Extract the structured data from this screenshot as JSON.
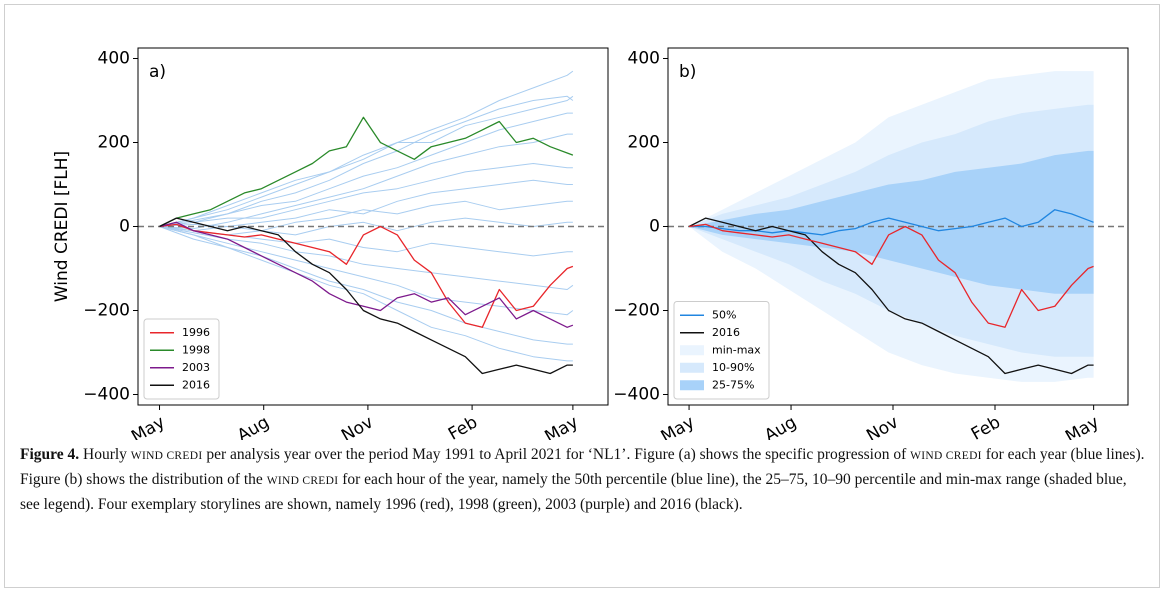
{
  "chart_data": [
    {
      "type": "line",
      "panel_label": "a)",
      "ylabel": "Wind CREDI [FLH]",
      "xlim": [
        -19,
        396
      ],
      "ylim": [
        -425,
        425
      ],
      "xticks": [
        {
          "value": 0,
          "label": "May"
        },
        {
          "value": 92,
          "label": "Aug"
        },
        {
          "value": 184,
          "label": "Nov"
        },
        {
          "value": 276,
          "label": "Feb"
        },
        {
          "value": 365,
          "label": "May"
        }
      ],
      "yticks": [
        {
          "value": -400,
          "label": "−400"
        },
        {
          "value": -200,
          "label": "−200"
        },
        0,
        200,
        400
      ],
      "zero_line": true,
      "legend_loc": "lower left",
      "background_lines": {
        "color": "#a9cdf0",
        "x": [
          0,
          30,
          60,
          90,
          120,
          150,
          180,
          210,
          240,
          270,
          300,
          330,
          360,
          365
        ],
        "values": [
          [
            0,
            20,
            40,
            70,
            100,
            130,
            170,
            200,
            230,
            260,
            300,
            330,
            360,
            370
          ],
          [
            0,
            15,
            30,
            60,
            80,
            110,
            150,
            180,
            220,
            250,
            280,
            300,
            310,
            300
          ],
          [
            0,
            10,
            30,
            50,
            60,
            90,
            120,
            140,
            170,
            200,
            230,
            250,
            270,
            270
          ],
          [
            0,
            -5,
            10,
            30,
            50,
            70,
            90,
            120,
            150,
            170,
            190,
            200,
            220,
            220
          ],
          [
            0,
            10,
            20,
            20,
            40,
            60,
            80,
            90,
            110,
            130,
            140,
            150,
            140,
            140
          ],
          [
            0,
            5,
            0,
            10,
            20,
            40,
            30,
            60,
            80,
            90,
            100,
            110,
            100,
            100
          ],
          [
            0,
            -10,
            0,
            -10,
            10,
            20,
            40,
            30,
            50,
            60,
            40,
            50,
            60,
            60
          ],
          [
            0,
            -10,
            -20,
            -10,
            -20,
            0,
            10,
            -10,
            10,
            20,
            10,
            0,
            10,
            10
          ],
          [
            0,
            -10,
            -20,
            -30,
            -40,
            -30,
            -50,
            -60,
            -40,
            -50,
            -60,
            -70,
            -60,
            -60
          ],
          [
            0,
            -15,
            -30,
            -40,
            -60,
            -70,
            -90,
            -100,
            -110,
            -120,
            -130,
            -140,
            -150,
            -140
          ],
          [
            0,
            -20,
            -40,
            -60,
            -80,
            -100,
            -120,
            -140,
            -170,
            -180,
            -190,
            -200,
            -210,
            -200
          ],
          [
            0,
            -20,
            -50,
            -70,
            -100,
            -130,
            -150,
            -180,
            -200,
            -230,
            -250,
            -270,
            -280,
            -280
          ],
          [
            0,
            -30,
            -50,
            -80,
            -110,
            -140,
            -160,
            -200,
            -240,
            -260,
            -290,
            -310,
            -320,
            -320
          ],
          [
            0,
            20,
            50,
            80,
            110,
            130,
            160,
            200,
            200,
            240,
            260,
            280,
            300,
            310
          ]
        ]
      },
      "x": [
        0,
        15,
        30,
        45,
        60,
        75,
        90,
        105,
        120,
        135,
        150,
        165,
        180,
        195,
        210,
        225,
        240,
        255,
        270,
        285,
        300,
        315,
        330,
        345,
        360,
        365
      ],
      "series": [
        {
          "name": "1996",
          "color": "#e8262b",
          "values": [
            0,
            5,
            -10,
            -15,
            -20,
            -25,
            -20,
            -30,
            -40,
            -50,
            -60,
            -90,
            -20,
            0,
            -20,
            -80,
            -110,
            -180,
            -230,
            -240,
            -150,
            -200,
            -190,
            -140,
            -100,
            -95
          ]
        },
        {
          "name": "1998",
          "color": "#2a8a2a",
          "values": [
            0,
            20,
            30,
            40,
            60,
            80,
            90,
            110,
            130,
            150,
            180,
            190,
            260,
            200,
            180,
            160,
            190,
            200,
            210,
            230,
            250,
            200,
            210,
            190,
            175,
            170
          ]
        },
        {
          "name": "2003",
          "color": "#7d1a8c",
          "values": [
            0,
            10,
            -10,
            -20,
            -30,
            -50,
            -70,
            -90,
            -110,
            -130,
            -160,
            -180,
            -190,
            -200,
            -170,
            -160,
            -180,
            -170,
            -210,
            -190,
            -170,
            -220,
            -200,
            -220,
            -240,
            -235
          ]
        },
        {
          "name": "2016",
          "color": "#111111",
          "values": [
            0,
            20,
            10,
            0,
            -10,
            0,
            -10,
            -20,
            -60,
            -90,
            -110,
            -150,
            -200,
            -220,
            -230,
            -250,
            -270,
            -290,
            -310,
            -350,
            -340,
            -330,
            -340,
            -350,
            -330,
            -330
          ]
        }
      ]
    },
    {
      "type": "line",
      "panel_label": "b)",
      "xlim": [
        -19,
        396
      ],
      "ylim": [
        -425,
        425
      ],
      "xticks": [
        {
          "value": 0,
          "label": "May"
        },
        {
          "value": 92,
          "label": "Aug"
        },
        {
          "value": 184,
          "label": "Nov"
        },
        {
          "value": 276,
          "label": "Feb"
        },
        {
          "value": 365,
          "label": "May"
        }
      ],
      "yticks": [
        {
          "value": -400,
          "label": "−400"
        },
        {
          "value": -200,
          "label": "−200"
        },
        0,
        200,
        400
      ],
      "zero_line": true,
      "legend_loc": "lower left",
      "bands": [
        {
          "name": "min-max",
          "color": "#eaf4fe",
          "x": [
            0,
            30,
            60,
            90,
            120,
            150,
            180,
            210,
            240,
            270,
            300,
            330,
            360,
            365
          ],
          "low": [
            0,
            -60,
            -100,
            -150,
            -200,
            -250,
            -300,
            -330,
            -350,
            -360,
            -370,
            -370,
            -360,
            -360
          ],
          "high": [
            0,
            40,
            80,
            120,
            160,
            200,
            260,
            290,
            320,
            350,
            360,
            370,
            370,
            370
          ]
        },
        {
          "name": "10-90%",
          "color": "#d6e9fc",
          "x": [
            0,
            30,
            60,
            90,
            120,
            150,
            180,
            210,
            240,
            270,
            300,
            330,
            360,
            365
          ],
          "low": [
            0,
            -30,
            -60,
            -90,
            -130,
            -160,
            -200,
            -230,
            -260,
            -280,
            -300,
            -310,
            -310,
            -310
          ],
          "high": [
            0,
            30,
            50,
            70,
            100,
            130,
            170,
            200,
            220,
            250,
            270,
            280,
            290,
            290
          ]
        },
        {
          "name": "25-75%",
          "color": "#a8d2f9",
          "x": [
            0,
            30,
            60,
            90,
            120,
            150,
            180,
            210,
            240,
            270,
            300,
            330,
            360,
            365
          ],
          "low": [
            0,
            -20,
            -30,
            -40,
            -50,
            -60,
            -80,
            -100,
            -120,
            -140,
            -150,
            -160,
            -160,
            -160
          ],
          "high": [
            0,
            15,
            30,
            40,
            60,
            80,
            100,
            110,
            130,
            140,
            150,
            170,
            180,
            180
          ]
        }
      ],
      "x": [
        0,
        15,
        30,
        45,
        60,
        75,
        90,
        105,
        120,
        135,
        150,
        165,
        180,
        195,
        210,
        225,
        240,
        255,
        270,
        285,
        300,
        315,
        330,
        345,
        360,
        365
      ],
      "series": [
        {
          "name": "50%",
          "color": "#2186e0",
          "values": [
            0,
            0,
            -5,
            -10,
            -10,
            -15,
            -10,
            -15,
            -20,
            -10,
            -5,
            10,
            20,
            10,
            0,
            -10,
            -5,
            0,
            10,
            20,
            0,
            10,
            40,
            30,
            15,
            10
          ]
        },
        {
          "name": "2016",
          "color": "#111111",
          "values": [
            0,
            20,
            10,
            0,
            -10,
            0,
            -10,
            -20,
            -60,
            -90,
            -110,
            -150,
            -200,
            -220,
            -230,
            -250,
            -270,
            -290,
            -310,
            -350,
            -340,
            -330,
            -340,
            -350,
            -330,
            -330
          ]
        },
        {
          "color": "#e8262b",
          "values": [
            0,
            5,
            -10,
            -15,
            -20,
            -25,
            -20,
            -30,
            -40,
            -50,
            -60,
            -90,
            -20,
            0,
            -20,
            -80,
            -110,
            -180,
            -230,
            -240,
            -150,
            -200,
            -190,
            -140,
            -100,
            -95
          ]
        }
      ]
    }
  ],
  "caption": {
    "label": "Figure 4.",
    "segments": [
      " Hourly ",
      "WIND CREDI",
      " per analysis year over the period May 1991 to April 2021 for ‘NL1’. Figure (a) shows the specific progression of ",
      "WIND CREDI",
      " for each year (blue lines). Figure (b) shows the distribution of the ",
      "WIND CREDI",
      " for each hour of the year, namely the 50th percentile (blue line), the 25–75, 10–90 percentile and min-max range (shaded blue, see legend). Four exemplary storylines are shown, namely 1996 (red), 1998 (green), 2003 (purple) and 2016 (black)."
    ]
  }
}
